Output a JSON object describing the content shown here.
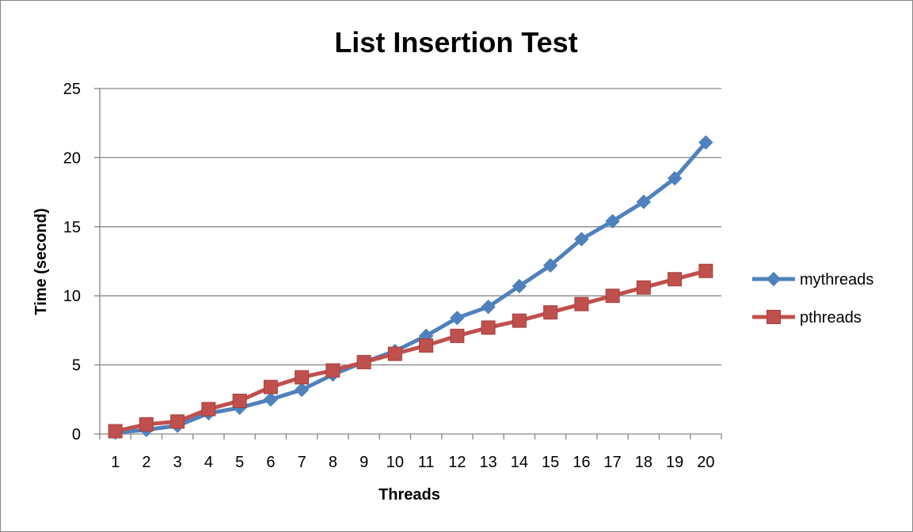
{
  "chart_data": {
    "type": "line",
    "title": "List Insertion Test",
    "xlabel": "Threads",
    "ylabel": "Time (second)",
    "categories": [
      "1",
      "2",
      "3",
      "4",
      "5",
      "6",
      "7",
      "8",
      "9",
      "10",
      "11",
      "12",
      "13",
      "14",
      "15",
      "16",
      "17",
      "18",
      "19",
      "20"
    ],
    "ylim": [
      0,
      25
    ],
    "yticks": [
      0,
      5,
      10,
      15,
      20,
      25
    ],
    "grid": "horizontal",
    "legend_position": "right",
    "series": [
      {
        "name": "mythreads",
        "color": "#4F81BD",
        "marker": "diamond",
        "values": [
          0.1,
          0.3,
          0.6,
          1.5,
          1.9,
          2.5,
          3.2,
          4.3,
          5.2,
          6.0,
          7.1,
          8.4,
          9.2,
          10.7,
          12.2,
          14.1,
          15.4,
          16.8,
          18.5,
          21.1
        ]
      },
      {
        "name": "pthreads",
        "color": "#C0504D",
        "marker": "square",
        "values": [
          0.2,
          0.7,
          0.9,
          1.8,
          2.4,
          3.4,
          4.1,
          4.6,
          5.2,
          5.8,
          6.4,
          7.1,
          7.7,
          8.2,
          8.8,
          9.4,
          10.0,
          10.6,
          11.2,
          11.8
        ]
      }
    ]
  }
}
